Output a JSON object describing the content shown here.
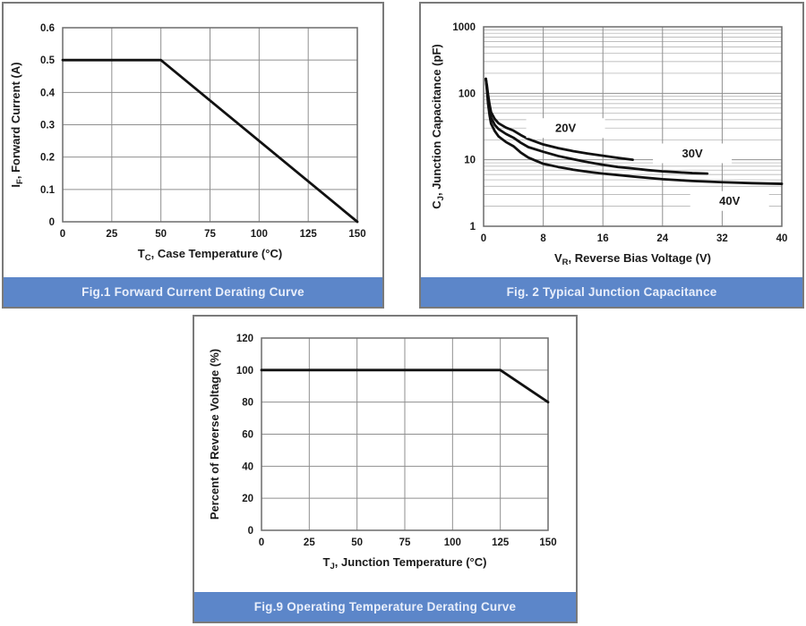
{
  "page": {
    "background": "#ffffff"
  },
  "colors": {
    "banner_bg": "#5c86c9",
    "banner_text": "#e9effb",
    "panel_border": "#7a7a7a",
    "panel_bg": "#ffffff",
    "grid_major": "#8f8f8f",
    "grid_minor": "#a9a9a9",
    "frame": "#6b6b6b",
    "curve": "#111111",
    "tick_text": "#1a1a1a"
  },
  "chart_data": [
    {
      "id": "fig1",
      "caption": "Fig.1 Forward Current Derating Curve",
      "type": "line",
      "xlabel_parts": [
        {
          "t": "T"
        },
        {
          "t": "C",
          "sub": true
        },
        {
          "t": ", Case Temperature (°C)"
        }
      ],
      "ylabel_parts": [
        {
          "t": "I"
        },
        {
          "t": "F",
          "sub": true
        },
        {
          "t": ", Forward Current (A)"
        }
      ],
      "xlim": [
        0,
        150
      ],
      "xticks": [
        0,
        25,
        50,
        75,
        100,
        125,
        150
      ],
      "xtick_labels": [
        "0",
        "25",
        "50",
        "75",
        "100",
        "125",
        "150"
      ],
      "yscale": "linear",
      "ylim": [
        0,
        0.6
      ],
      "yticks": [
        0,
        0.1,
        0.2,
        0.3,
        0.4,
        0.5,
        0.6
      ],
      "ytick_labels": [
        "0",
        "0.1",
        "0.2",
        "0.3",
        "0.4",
        "0.5",
        "0.6"
      ],
      "grid": true,
      "legend": null,
      "series": [
        {
          "name": "forward-current-derating",
          "points": [
            [
              0,
              0.5
            ],
            [
              50,
              0.5
            ],
            [
              150,
              0
            ]
          ]
        }
      ],
      "annotations": []
    },
    {
      "id": "fig2",
      "caption": "Fig. 2 Typical Junction Capacitance",
      "type": "line",
      "xlabel_parts": [
        {
          "t": "V"
        },
        {
          "t": "R",
          "sub": true
        },
        {
          "t": ", Reverse Bias Voltage (V)"
        }
      ],
      "ylabel_parts": [
        {
          "t": "C"
        },
        {
          "t": "J",
          "sub": true
        },
        {
          "t": ", Junction Capacitance (pF)"
        }
      ],
      "xlim": [
        0,
        40
      ],
      "xticks": [
        0,
        8,
        16,
        24,
        32,
        40
      ],
      "xtick_labels": [
        "0",
        "8",
        "16",
        "24",
        "32",
        "40"
      ],
      "yscale": "log",
      "ylim": [
        1,
        1000
      ],
      "yticks": [
        1,
        10,
        100,
        1000
      ],
      "ytick_labels": [
        "1",
        "10",
        "100",
        "1000"
      ],
      "grid": true,
      "legend": null,
      "series": [
        {
          "name": "20V",
          "points": [
            [
              0.3,
              165
            ],
            [
              0.45,
              130
            ],
            [
              0.6,
              95
            ],
            [
              0.8,
              68
            ],
            [
              1,
              52
            ],
            [
              1.5,
              41
            ],
            [
              2,
              35.5
            ],
            [
              3,
              30.5
            ],
            [
              4,
              27.5
            ],
            [
              5,
              23.5
            ],
            [
              6,
              20.5
            ],
            [
              8,
              17
            ],
            [
              10,
              15
            ],
            [
              12,
              13.5
            ],
            [
              14,
              12.4
            ],
            [
              16,
              11.5
            ],
            [
              18,
              10.7
            ],
            [
              20,
              10
            ]
          ]
        },
        {
          "name": "30V",
          "points": [
            [
              0.3,
              165
            ],
            [
              0.45,
              120
            ],
            [
              0.6,
              82
            ],
            [
              0.8,
              57
            ],
            [
              1,
              43
            ],
            [
              1.5,
              33.5
            ],
            [
              2,
              29
            ],
            [
              3,
              24.5
            ],
            [
              4,
              21.5
            ],
            [
              5,
              18
            ],
            [
              6,
              15.5
            ],
            [
              8,
              13.2
            ],
            [
              10,
              11.4
            ],
            [
              12,
              10.2
            ],
            [
              14,
              9.2
            ],
            [
              16,
              8.4
            ],
            [
              18,
              7.8
            ],
            [
              20,
              7.4
            ],
            [
              22,
              7
            ],
            [
              24,
              6.7
            ],
            [
              26,
              6.5
            ],
            [
              28,
              6.3
            ],
            [
              30,
              6.2
            ]
          ]
        },
        {
          "name": "40V",
          "points": [
            [
              0.3,
              165
            ],
            [
              0.45,
              110
            ],
            [
              0.6,
              70
            ],
            [
              0.8,
              47
            ],
            [
              1,
              35
            ],
            [
              1.5,
              27
            ],
            [
              2,
              22.5
            ],
            [
              3,
              18.5
            ],
            [
              4,
              16
            ],
            [
              5,
              12.8
            ],
            [
              6,
              10.8
            ],
            [
              8,
              8.7
            ],
            [
              10,
              7.8
            ],
            [
              12,
              7.1
            ],
            [
              14,
              6.6
            ],
            [
              16,
              6.2
            ],
            [
              18,
              5.9
            ],
            [
              20,
              5.6
            ],
            [
              24,
              5.1
            ],
            [
              28,
              4.8
            ],
            [
              32,
              4.6
            ],
            [
              36,
              4.45
            ],
            [
              40,
              4.35
            ]
          ]
        }
      ],
      "annotations": [
        {
          "text": "20V",
          "x": 11,
          "y": 30
        },
        {
          "text": "30V",
          "x": 28,
          "y": 12.5
        },
        {
          "text": "40V",
          "x": 33,
          "y": 2.4
        }
      ]
    },
    {
      "id": "fig9",
      "caption": "Fig.9 Operating Temperature Derating Curve",
      "type": "line",
      "xlabel_parts": [
        {
          "t": "T"
        },
        {
          "t": "J",
          "sub": true
        },
        {
          "t": ", Junction Temperature (°C)"
        }
      ],
      "ylabel_parts": [
        {
          "t": "Percent of Reverse Voltage (%)"
        }
      ],
      "xlim": [
        0,
        150
      ],
      "xticks": [
        0,
        25,
        50,
        75,
        100,
        125,
        150
      ],
      "xtick_labels": [
        "0",
        "25",
        "50",
        "75",
        "100",
        "125",
        "150"
      ],
      "yscale": "linear",
      "ylim": [
        0,
        120
      ],
      "yticks": [
        0,
        20,
        40,
        60,
        80,
        100,
        120
      ],
      "ytick_labels": [
        "0",
        "20",
        "40",
        "60",
        "80",
        "100",
        "120"
      ],
      "grid": true,
      "legend": null,
      "series": [
        {
          "name": "reverse-voltage-derating",
          "points": [
            [
              0,
              100
            ],
            [
              125,
              100
            ],
            [
              150,
              80
            ]
          ]
        }
      ],
      "annotations": []
    }
  ]
}
